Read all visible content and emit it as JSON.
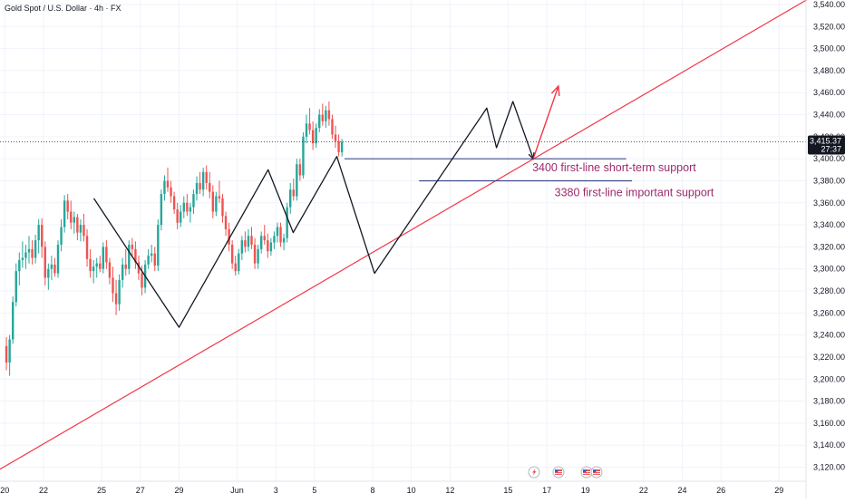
{
  "chart_data": {
    "type": "candlestick",
    "title": "Gold Spot / U.S. Dollar · 4h · FX",
    "ylim": [
      3110,
      3546
    ],
    "y_ticks": [
      3120,
      3140,
      3160,
      3180,
      3200,
      3220,
      3240,
      3260,
      3280,
      3300,
      3320,
      3340,
      3360,
      3380,
      3400,
      3420,
      3440,
      3460,
      3480,
      3500,
      3520,
      3540
    ],
    "y_tick_labels": [
      "3,120.00",
      "3,140.00",
      "3,160.00",
      "3,180.00",
      "3,200.00",
      "3,220.00",
      "3,240.00",
      "3,260.00",
      "3,280.00",
      "3,300.00",
      "3,320.00",
      "3,340.00",
      "3,360.00",
      "3,380.00",
      "3,400.00",
      "3,420.00",
      "3,440.00",
      "3,460.00",
      "3,480.00",
      "3,500.00",
      "3,520.00",
      "3,540.00"
    ],
    "x_ticks": [
      {
        "label": "20",
        "day": 0
      },
      {
        "label": "22",
        "day": 2
      },
      {
        "label": "25",
        "day": 5
      },
      {
        "label": "27",
        "day": 7
      },
      {
        "label": "29",
        "day": 9
      },
      {
        "label": "Jun",
        "day": 12
      },
      {
        "label": "3",
        "day": 14
      },
      {
        "label": "5",
        "day": 16
      },
      {
        "label": "8",
        "day": 19
      },
      {
        "label": "10",
        "day": 21
      },
      {
        "label": "12",
        "day": 23
      },
      {
        "label": "15",
        "day": 26
      },
      {
        "label": "17",
        "day": 28
      },
      {
        "label": "19",
        "day": 30
      },
      {
        "label": "22",
        "day": 33
      },
      {
        "label": "24",
        "day": 35
      },
      {
        "label": "26",
        "day": 37
      },
      {
        "label": "29",
        "day": 40
      }
    ],
    "current_price": {
      "value": 3415.37,
      "label": "3,415.37",
      "countdown": "27:37"
    },
    "colors": {
      "up": "#26a69a",
      "down": "#ef5350",
      "trend": "#f23645",
      "zigzag": "#131722",
      "support": "#3f4a8c",
      "annotation": "#9c2a6e",
      "price": "#131722"
    },
    "candles": [
      {
        "o": 3230,
        "h": 3238,
        "l": 3208,
        "c": 3215
      },
      {
        "o": 3215,
        "h": 3240,
        "l": 3203,
        "c": 3236
      },
      {
        "o": 3236,
        "h": 3275,
        "l": 3232,
        "c": 3270
      },
      {
        "o": 3270,
        "h": 3305,
        "l": 3266,
        "c": 3298
      },
      {
        "o": 3298,
        "h": 3315,
        "l": 3285,
        "c": 3308
      },
      {
        "o": 3308,
        "h": 3325,
        "l": 3301,
        "c": 3310
      },
      {
        "o": 3310,
        "h": 3322,
        "l": 3300,
        "c": 3315
      },
      {
        "o": 3315,
        "h": 3330,
        "l": 3305,
        "c": 3318
      },
      {
        "o": 3318,
        "h": 3326,
        "l": 3304,
        "c": 3310
      },
      {
        "o": 3310,
        "h": 3331,
        "l": 3305,
        "c": 3326
      },
      {
        "o": 3326,
        "h": 3345,
        "l": 3314,
        "c": 3340
      },
      {
        "o": 3340,
        "h": 3346,
        "l": 3310,
        "c": 3320
      },
      {
        "o": 3320,
        "h": 3325,
        "l": 3285,
        "c": 3292
      },
      {
        "o": 3292,
        "h": 3305,
        "l": 3281,
        "c": 3300
      },
      {
        "o": 3300,
        "h": 3312,
        "l": 3290,
        "c": 3304
      },
      {
        "o": 3304,
        "h": 3310,
        "l": 3293,
        "c": 3296
      },
      {
        "o": 3296,
        "h": 3326,
        "l": 3292,
        "c": 3322
      },
      {
        "o": 3322,
        "h": 3345,
        "l": 3316,
        "c": 3338
      },
      {
        "o": 3338,
        "h": 3367,
        "l": 3333,
        "c": 3362
      },
      {
        "o": 3362,
        "h": 3368,
        "l": 3345,
        "c": 3352
      },
      {
        "o": 3352,
        "h": 3362,
        "l": 3336,
        "c": 3342
      },
      {
        "o": 3342,
        "h": 3352,
        "l": 3332,
        "c": 3347
      },
      {
        "o": 3347,
        "h": 3350,
        "l": 3326,
        "c": 3333
      },
      {
        "o": 3333,
        "h": 3345,
        "l": 3325,
        "c": 3340
      },
      {
        "o": 3340,
        "h": 3350,
        "l": 3325,
        "c": 3330
      },
      {
        "o": 3330,
        "h": 3336,
        "l": 3302,
        "c": 3309
      },
      {
        "o": 3309,
        "h": 3318,
        "l": 3292,
        "c": 3298
      },
      {
        "o": 3298,
        "h": 3308,
        "l": 3287,
        "c": 3302
      },
      {
        "o": 3302,
        "h": 3310,
        "l": 3292,
        "c": 3305
      },
      {
        "o": 3305,
        "h": 3312,
        "l": 3297,
        "c": 3300
      },
      {
        "o": 3300,
        "h": 3324,
        "l": 3296,
        "c": 3320
      },
      {
        "o": 3320,
        "h": 3326,
        "l": 3300,
        "c": 3306
      },
      {
        "o": 3306,
        "h": 3310,
        "l": 3286,
        "c": 3292
      },
      {
        "o": 3292,
        "h": 3302,
        "l": 3270,
        "c": 3278
      },
      {
        "o": 3278,
        "h": 3290,
        "l": 3258,
        "c": 3268
      },
      {
        "o": 3268,
        "h": 3295,
        "l": 3262,
        "c": 3290
      },
      {
        "o": 3290,
        "h": 3310,
        "l": 3283,
        "c": 3304
      },
      {
        "o": 3304,
        "h": 3318,
        "l": 3294,
        "c": 3300
      },
      {
        "o": 3300,
        "h": 3326,
        "l": 3295,
        "c": 3322
      },
      {
        "o": 3322,
        "h": 3328,
        "l": 3310,
        "c": 3318
      },
      {
        "o": 3318,
        "h": 3325,
        "l": 3300,
        "c": 3306
      },
      {
        "o": 3306,
        "h": 3312,
        "l": 3290,
        "c": 3296
      },
      {
        "o": 3296,
        "h": 3303,
        "l": 3276,
        "c": 3283
      },
      {
        "o": 3283,
        "h": 3308,
        "l": 3278,
        "c": 3304
      },
      {
        "o": 3304,
        "h": 3318,
        "l": 3300,
        "c": 3312
      },
      {
        "o": 3312,
        "h": 3322,
        "l": 3306,
        "c": 3314
      },
      {
        "o": 3314,
        "h": 3320,
        "l": 3298,
        "c": 3303
      },
      {
        "o": 3303,
        "h": 3345,
        "l": 3298,
        "c": 3340
      },
      {
        "o": 3340,
        "h": 3372,
        "l": 3335,
        "c": 3368
      },
      {
        "o": 3368,
        "h": 3385,
        "l": 3362,
        "c": 3380
      },
      {
        "o": 3380,
        "h": 3392,
        "l": 3370,
        "c": 3374
      },
      {
        "o": 3374,
        "h": 3380,
        "l": 3360,
        "c": 3366
      },
      {
        "o": 3366,
        "h": 3370,
        "l": 3350,
        "c": 3354
      },
      {
        "o": 3354,
        "h": 3360,
        "l": 3336,
        "c": 3342
      },
      {
        "o": 3342,
        "h": 3358,
        "l": 3338,
        "c": 3352
      },
      {
        "o": 3352,
        "h": 3366,
        "l": 3346,
        "c": 3360
      },
      {
        "o": 3360,
        "h": 3368,
        "l": 3348,
        "c": 3352
      },
      {
        "o": 3352,
        "h": 3360,
        "l": 3342,
        "c": 3356
      },
      {
        "o": 3356,
        "h": 3372,
        "l": 3350,
        "c": 3368
      },
      {
        "o": 3368,
        "h": 3384,
        "l": 3362,
        "c": 3378
      },
      {
        "o": 3378,
        "h": 3388,
        "l": 3368,
        "c": 3372
      },
      {
        "o": 3372,
        "h": 3392,
        "l": 3366,
        "c": 3388
      },
      {
        "o": 3388,
        "h": 3394,
        "l": 3372,
        "c": 3378
      },
      {
        "o": 3378,
        "h": 3388,
        "l": 3364,
        "c": 3370
      },
      {
        "o": 3370,
        "h": 3376,
        "l": 3346,
        "c": 3352
      },
      {
        "o": 3352,
        "h": 3370,
        "l": 3348,
        "c": 3366
      },
      {
        "o": 3366,
        "h": 3380,
        "l": 3360,
        "c": 3364
      },
      {
        "o": 3364,
        "h": 3368,
        "l": 3342,
        "c": 3348
      },
      {
        "o": 3348,
        "h": 3352,
        "l": 3330,
        "c": 3336
      },
      {
        "o": 3336,
        "h": 3342,
        "l": 3316,
        "c": 3322
      },
      {
        "o": 3322,
        "h": 3326,
        "l": 3300,
        "c": 3305
      },
      {
        "o": 3305,
        "h": 3312,
        "l": 3294,
        "c": 3298
      },
      {
        "o": 3298,
        "h": 3318,
        "l": 3295,
        "c": 3314
      },
      {
        "o": 3314,
        "h": 3330,
        "l": 3308,
        "c": 3326
      },
      {
        "o": 3326,
        "h": 3334,
        "l": 3315,
        "c": 3320
      },
      {
        "o": 3320,
        "h": 3336,
        "l": 3316,
        "c": 3330
      },
      {
        "o": 3330,
        "h": 3338,
        "l": 3318,
        "c": 3322
      },
      {
        "o": 3322,
        "h": 3328,
        "l": 3300,
        "c": 3305
      },
      {
        "o": 3305,
        "h": 3322,
        "l": 3300,
        "c": 3318
      },
      {
        "o": 3318,
        "h": 3334,
        "l": 3314,
        "c": 3330
      },
      {
        "o": 3330,
        "h": 3340,
        "l": 3322,
        "c": 3326
      },
      {
        "o": 3326,
        "h": 3332,
        "l": 3310,
        "c": 3316
      },
      {
        "o": 3316,
        "h": 3328,
        "l": 3312,
        "c": 3324
      },
      {
        "o": 3324,
        "h": 3334,
        "l": 3318,
        "c": 3330
      },
      {
        "o": 3330,
        "h": 3342,
        "l": 3324,
        "c": 3338
      },
      {
        "o": 3338,
        "h": 3342,
        "l": 3320,
        "c": 3324
      },
      {
        "o": 3324,
        "h": 3332,
        "l": 3317,
        "c": 3328
      },
      {
        "o": 3328,
        "h": 3360,
        "l": 3324,
        "c": 3356
      },
      {
        "o": 3356,
        "h": 3378,
        "l": 3350,
        "c": 3372
      },
      {
        "o": 3372,
        "h": 3382,
        "l": 3362,
        "c": 3366
      },
      {
        "o": 3366,
        "h": 3400,
        "l": 3362,
        "c": 3395
      },
      {
        "o": 3395,
        "h": 3400,
        "l": 3380,
        "c": 3385
      },
      {
        "o": 3385,
        "h": 3424,
        "l": 3382,
        "c": 3420
      },
      {
        "o": 3420,
        "h": 3440,
        "l": 3414,
        "c": 3432
      },
      {
        "o": 3432,
        "h": 3446,
        "l": 3422,
        "c": 3426
      },
      {
        "o": 3426,
        "h": 3434,
        "l": 3408,
        "c": 3414
      },
      {
        "o": 3414,
        "h": 3432,
        "l": 3410,
        "c": 3428
      },
      {
        "o": 3428,
        "h": 3445,
        "l": 3424,
        "c": 3440
      },
      {
        "o": 3440,
        "h": 3450,
        "l": 3430,
        "c": 3434
      },
      {
        "o": 3434,
        "h": 3448,
        "l": 3428,
        "c": 3444
      },
      {
        "o": 3444,
        "h": 3452,
        "l": 3430,
        "c": 3436
      },
      {
        "o": 3436,
        "h": 3440,
        "l": 3418,
        "c": 3422
      },
      {
        "o": 3422,
        "h": 3430,
        "l": 3410,
        "c": 3416
      },
      {
        "o": 3416,
        "h": 3422,
        "l": 3402,
        "c": 3406
      },
      {
        "o": 3406,
        "h": 3418,
        "l": 3402,
        "c": 3415.37
      }
    ],
    "trendline": [
      {
        "day": -0.95,
        "price": 3111
      },
      {
        "day": 41.6,
        "price": 3546
      }
    ],
    "zigzag": [
      {
        "day": 4.6,
        "price": 3364
      },
      {
        "day": 9.0,
        "price": 3247
      },
      {
        "day": 13.6,
        "price": 3390
      },
      {
        "day": 14.9,
        "price": 3333
      },
      {
        "day": 17.15,
        "price": 3402
      },
      {
        "day": 19.1,
        "price": 3296
      },
      {
        "day": 24.9,
        "price": 3446
      },
      {
        "day": 25.4,
        "price": 3410
      },
      {
        "day": 26.25,
        "price": 3452
      },
      {
        "day": 27.3,
        "price": 3400
      }
    ],
    "forecast_arrow": [
      {
        "day": 27.3,
        "price": 3400
      },
      {
        "day": 28.6,
        "price": 3466
      }
    ],
    "levels": [
      {
        "label": "3400 first-line short-term support",
        "price": 3400,
        "from_day": 17.55,
        "to_day": 32.1,
        "label_day": 27.25,
        "label_offset": 14
      },
      {
        "label": "3380 first-line important support",
        "price": 3380,
        "from_day": 21.4,
        "to_day": 32.4,
        "label_day": 28.4,
        "label_offset": 17
      }
    ],
    "event_icons": [
      "lightning-icon",
      "us-flag-icon",
      "us-flag-icon",
      "us-flag-icon"
    ]
  }
}
